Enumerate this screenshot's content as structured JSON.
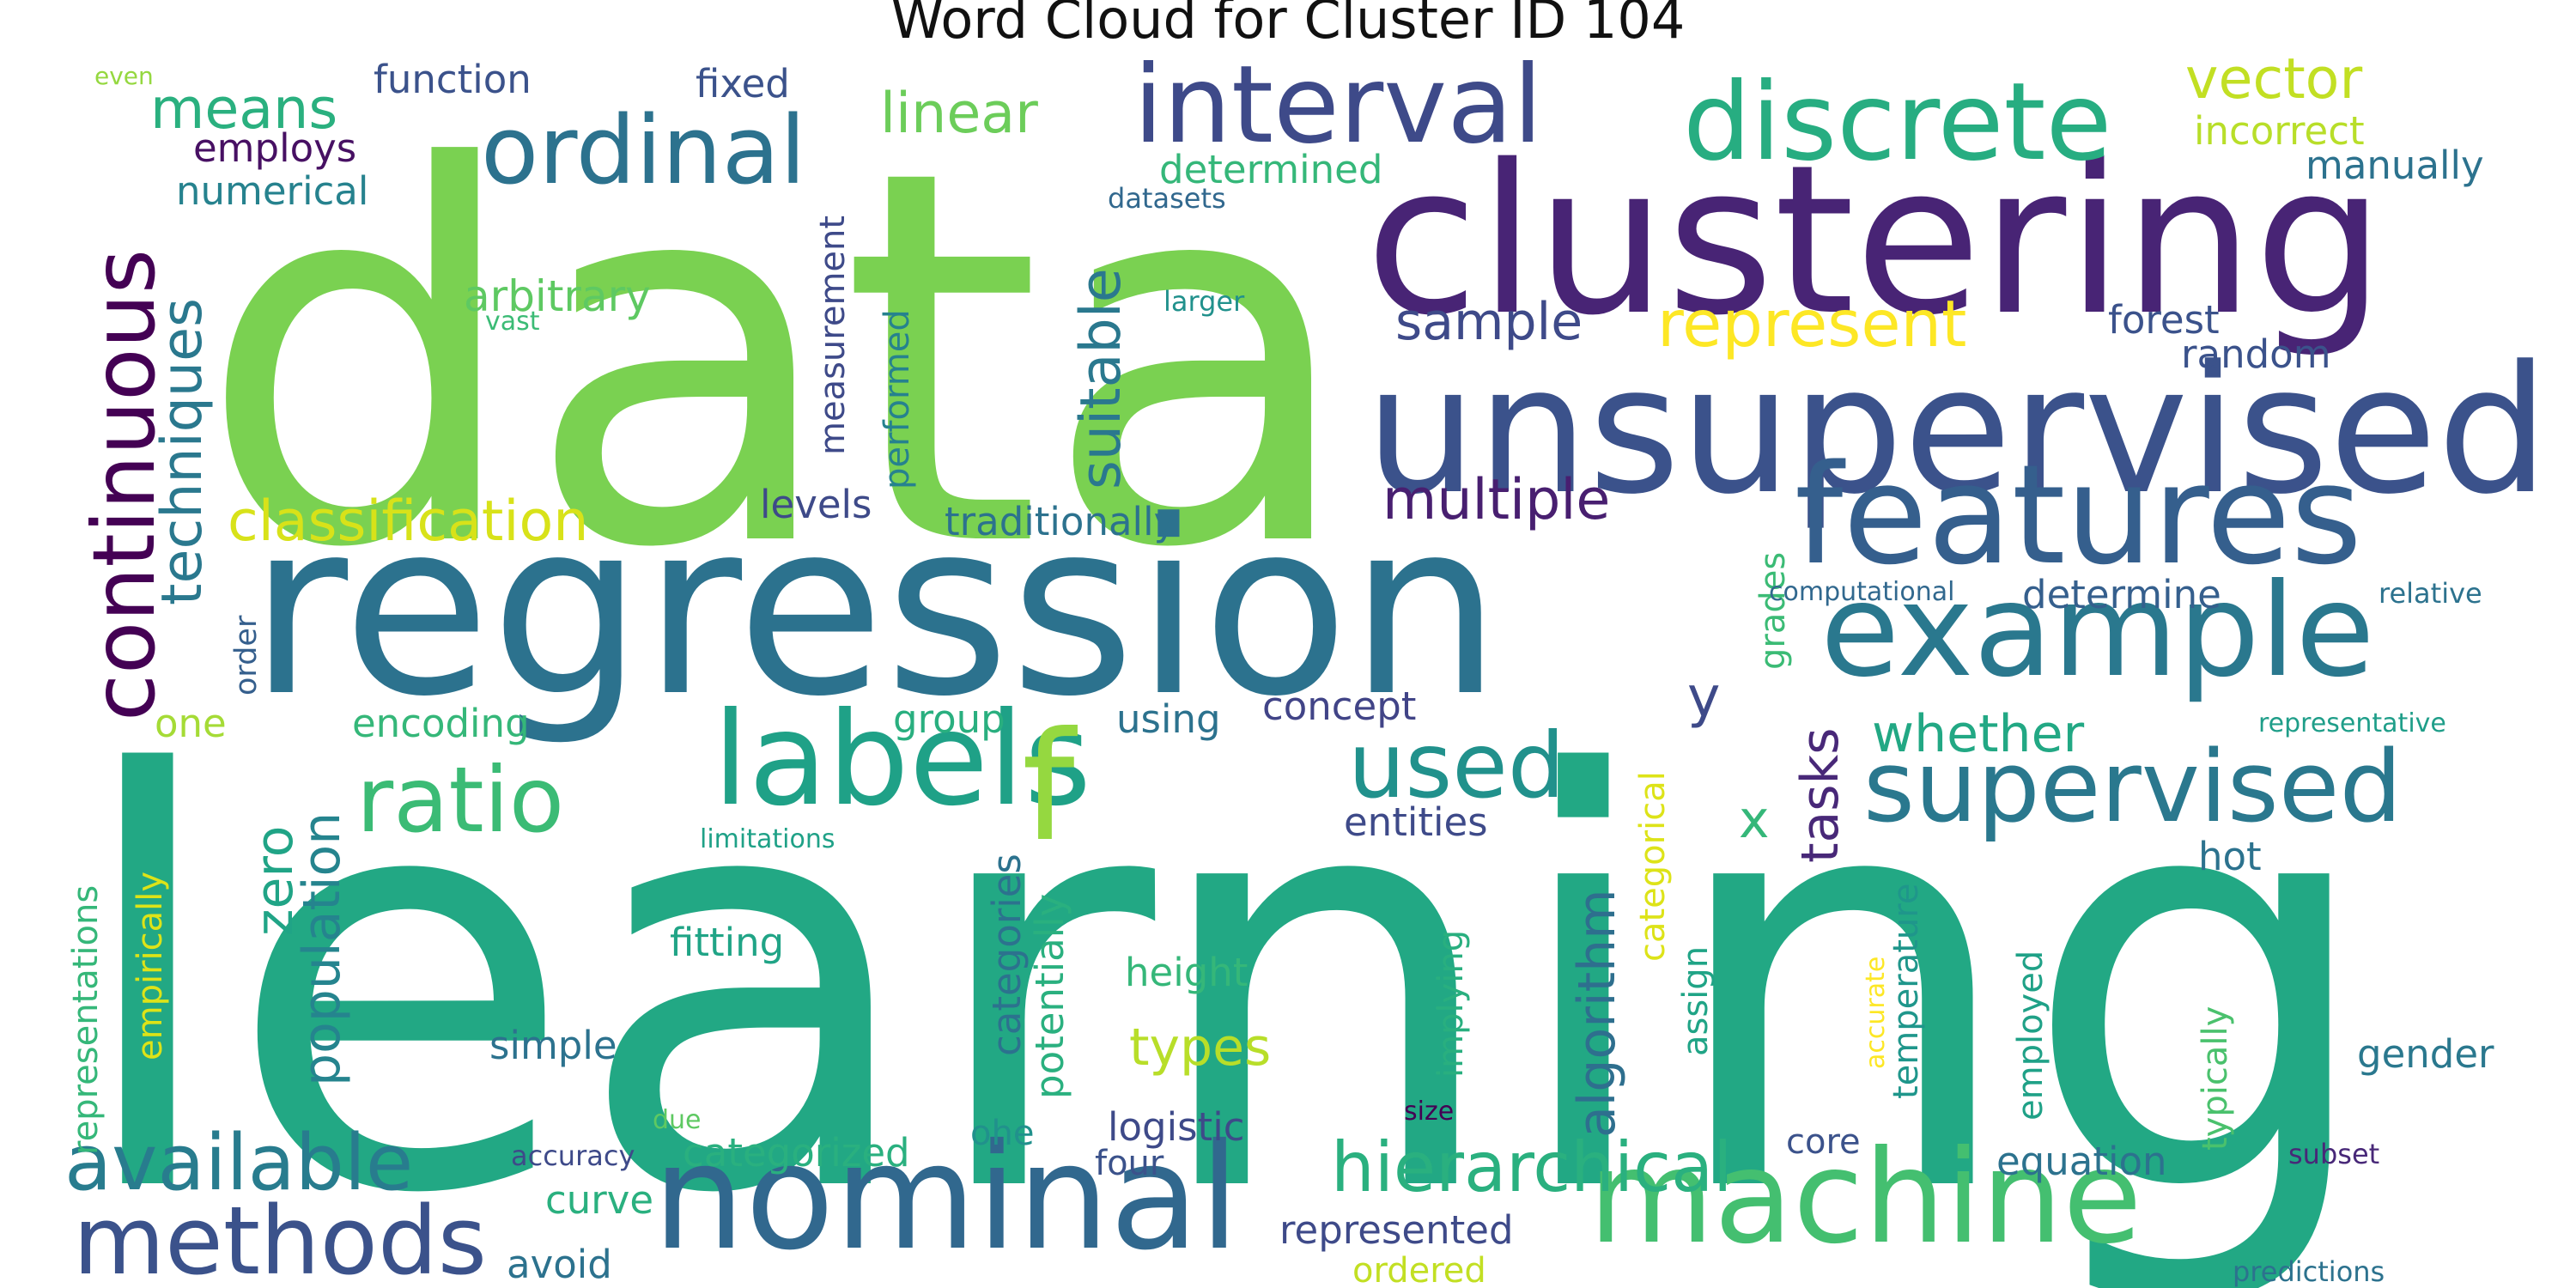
{
  "title": "Word Cloud for Cluster ID 104",
  "words": [
    {
      "text": "data",
      "color": "#7ad151"
    },
    {
      "text": "learning",
      "color": "#22a884"
    },
    {
      "text": "regression",
      "color": "#2c728e"
    },
    {
      "text": "clustering",
      "color": "#482475"
    },
    {
      "text": "unsupervised",
      "color": "#3b528b"
    },
    {
      "text": "features",
      "color": "#355f8d"
    },
    {
      "text": "example",
      "color": "#2a788e"
    },
    {
      "text": "nominal",
      "color": "#31688e"
    },
    {
      "text": "machine",
      "color": "#44bf70"
    },
    {
      "text": "labels",
      "color": "#1fa187"
    },
    {
      "text": "discrete",
      "color": "#27ad81"
    },
    {
      "text": "interval",
      "color": "#3e4a89"
    },
    {
      "text": "ordinal",
      "color": "#2c728e"
    },
    {
      "text": "supervised",
      "color": "#2a788e"
    },
    {
      "text": "continuous",
      "color": "#440154"
    },
    {
      "text": "ratio",
      "color": "#3bbb75"
    },
    {
      "text": "methods",
      "color": "#3b528b"
    },
    {
      "text": "used",
      "color": "#21918c"
    },
    {
      "text": "available",
      "color": "#287c8e"
    },
    {
      "text": "hierarchical",
      "color": "#2ab07f"
    },
    {
      "text": "f",
      "color": "#95d840"
    },
    {
      "text": "techniques",
      "color": "#2a788e"
    },
    {
      "text": "suitable",
      "color": "#2a788e"
    },
    {
      "text": "represent",
      "color": "#fde725"
    },
    {
      "text": "classification",
      "color": "#d8e219"
    },
    {
      "text": "multiple",
      "color": "#481f70"
    },
    {
      "text": "vector",
      "color": "#c2df23"
    },
    {
      "text": "linear",
      "color": "#6ccd5a"
    },
    {
      "text": "means",
      "color": "#2ab07f"
    },
    {
      "text": "sample",
      "color": "#3e4a89"
    },
    {
      "text": "zero",
      "color": "#20a486"
    },
    {
      "text": "population",
      "color": "#25848e"
    },
    {
      "text": "algorithm",
      "color": "#2e6f8e"
    },
    {
      "text": "tasks",
      "color": "#482878"
    },
    {
      "text": "types",
      "color": "#b8de29"
    },
    {
      "text": "whether",
      "color": "#22a884"
    },
    {
      "text": "y",
      "color": "#3e4a89"
    },
    {
      "text": "x",
      "color": "#35b779"
    },
    {
      "text": "function",
      "color": "#3b528b"
    },
    {
      "text": "fixed",
      "color": "#3b528b"
    },
    {
      "text": "employs",
      "color": "#471063"
    },
    {
      "text": "numerical",
      "color": "#26828e"
    },
    {
      "text": "determined",
      "color": "#35b779"
    },
    {
      "text": "datasets",
      "color": "#31688e"
    },
    {
      "text": "incorrect",
      "color": "#b8de29"
    },
    {
      "text": "manually",
      "color": "#2c728e"
    },
    {
      "text": "measurement",
      "color": "#3e4a89"
    },
    {
      "text": "arbitrary",
      "color": "#5ec962"
    },
    {
      "text": "vast",
      "color": "#3bbb75"
    },
    {
      "text": "larger",
      "color": "#21918c"
    },
    {
      "text": "performed",
      "color": "#26828e"
    },
    {
      "text": "forest",
      "color": "#3b528b"
    },
    {
      "text": "random",
      "color": "#3b528b"
    },
    {
      "text": "levels",
      "color": "#3e4a89"
    },
    {
      "text": "traditionally",
      "color": "#2c728e"
    },
    {
      "text": "order",
      "color": "#355f8d"
    },
    {
      "text": "one",
      "color": "#a5db36"
    },
    {
      "text": "encoding",
      "color": "#35b779"
    },
    {
      "text": "group",
      "color": "#29af7f"
    },
    {
      "text": "using",
      "color": "#2c728e"
    },
    {
      "text": "concept",
      "color": "#414487"
    },
    {
      "text": "grades",
      "color": "#3bbb75"
    },
    {
      "text": "computational",
      "color": "#31688e"
    },
    {
      "text": "determine",
      "color": "#355f8d"
    },
    {
      "text": "relative",
      "color": "#2c728e"
    },
    {
      "text": "representative",
      "color": "#1f9e89"
    },
    {
      "text": "entities",
      "color": "#3e4a89"
    },
    {
      "text": "categorical",
      "color": "#dde318"
    },
    {
      "text": "hot",
      "color": "#2c728e"
    },
    {
      "text": "limitations",
      "color": "#1fa187"
    },
    {
      "text": "empirically",
      "color": "#dde318"
    },
    {
      "text": "representations",
      "color": "#35b779"
    },
    {
      "text": "fitting",
      "color": "#20a486"
    },
    {
      "text": "categories",
      "color": "#2c728e"
    },
    {
      "text": "potentially",
      "color": "#2ab07f"
    },
    {
      "text": "height",
      "color": "#35b779"
    },
    {
      "text": "implying",
      "color": "#29af7f"
    },
    {
      "text": "assign",
      "color": "#20a486"
    },
    {
      "text": "temperature",
      "color": "#1f968b"
    },
    {
      "text": "employed",
      "color": "#1fa187"
    },
    {
      "text": "typically",
      "color": "#4ac16d"
    },
    {
      "text": "gender",
      "color": "#2a788e"
    },
    {
      "text": "accurate",
      "color": "#fde725"
    },
    {
      "text": "simple",
      "color": "#2c728e"
    },
    {
      "text": "size",
      "color": "#440154"
    },
    {
      "text": "due",
      "color": "#5ec962"
    },
    {
      "text": "accuracy",
      "color": "#3e4a89"
    },
    {
      "text": "categorized",
      "color": "#2ab07f"
    },
    {
      "text": "ohe",
      "color": "#21918c"
    },
    {
      "text": "logistic",
      "color": "#3e4a89"
    },
    {
      "text": "four",
      "color": "#3b528b"
    },
    {
      "text": "core",
      "color": "#3b528b"
    },
    {
      "text": "equation",
      "color": "#2c728e"
    },
    {
      "text": "subset",
      "color": "#482878"
    },
    {
      "text": "curve",
      "color": "#2ab07f"
    },
    {
      "text": "represented",
      "color": "#3e4a89"
    },
    {
      "text": "avoid",
      "color": "#2c728e"
    },
    {
      "text": "ordered",
      "color": "#c2df23"
    },
    {
      "text": "predictions",
      "color": "#2c728e"
    },
    {
      "text": "even",
      "color": "#95d840"
    }
  ]
}
